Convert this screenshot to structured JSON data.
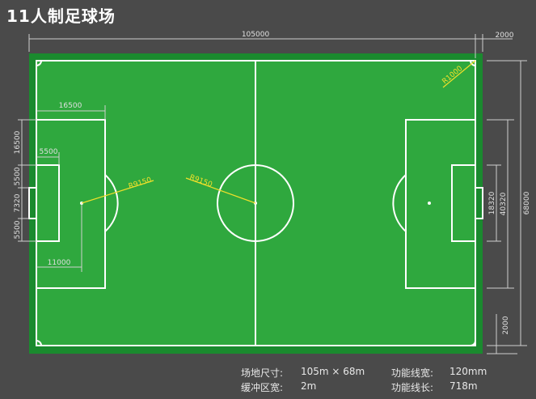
{
  "title": "11人制足球场",
  "dimensions": {
    "overall_length": "105000",
    "buffer_right": "2000",
    "overall_width": "68000",
    "penalty_area_width": "40320",
    "goal_area_width": "18320",
    "buffer_bottom": "2000",
    "penalty_area_depth": "16500",
    "goal_area_depth": "5500",
    "left_16500": "16500",
    "left_5500_top": "5500",
    "left_7320": "7320",
    "left_5500_bottom": "5500",
    "penalty_spot_distance": "11000",
    "arc_radius_left": "R9150",
    "center_circle_radius": "R9150",
    "corner_radius": "R1000"
  },
  "specs": {
    "field_size_label": "场地尺寸:",
    "field_size_value": "105m × 68m",
    "line_width_label": "功能线宽:",
    "line_width_value": "120mm",
    "buffer_label": "缓冲区宽:",
    "buffer_value": "2m",
    "line_length_label": "功能线长:",
    "line_length_value": "718m"
  },
  "colors": {
    "background": "#4a4a4a",
    "buffer_zone": "#1a8a2e",
    "pitch": "#2fa83e",
    "lines": "#ffffff",
    "dimension_yellow": "#f0e02a"
  }
}
